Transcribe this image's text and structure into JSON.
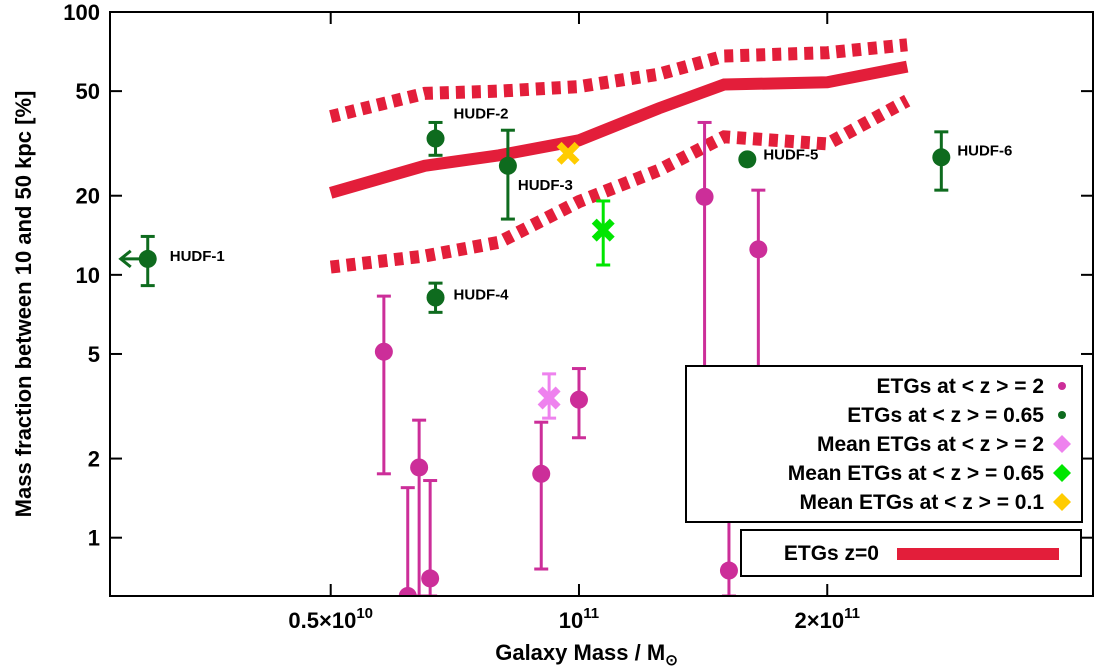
{
  "chart_data": {
    "type": "scatter",
    "xlabel": "Galaxy Mass / M",
    "xlabel_symbol": "⊙",
    "ylabel": "Mass fraction between 10 and 50 kpc [%]",
    "x_scale": "log",
    "y_scale": "log",
    "xlim": [
      27000000000.0,
      420000000000.0
    ],
    "ylim": [
      0.6,
      100
    ],
    "x_ticks": [
      {
        "value": 50000000000.0,
        "base": "0.5×10",
        "exp": "10"
      },
      {
        "value": 100000000000.0,
        "base": "10",
        "exp": "11"
      },
      {
        "value": 200000000000.0,
        "base": "2×10",
        "exp": "11"
      }
    ],
    "y_ticks": [
      {
        "value": 1,
        "label": "1"
      },
      {
        "value": 2,
        "label": "2"
      },
      {
        "value": 5,
        "label": "5"
      },
      {
        "value": 10,
        "label": "10"
      },
      {
        "value": 20,
        "label": "20"
      },
      {
        "value": 50,
        "label": "50"
      },
      {
        "value": 100,
        "label": "100"
      }
    ],
    "series": [
      {
        "name": "ETGs at < z > = 2",
        "marker": "circle",
        "color": "#cc2e99",
        "points": [
          {
            "x": 58000000000.0,
            "y": 5.1,
            "ylo": 1.75,
            "yhi": 8.3
          },
          {
            "x": 62000000000.0,
            "y": 0.6,
            "ylo": 0.6,
            "yhi": 1.55
          },
          {
            "x": 64000000000.0,
            "y": 1.85,
            "ylo": 0.6,
            "yhi": 2.8
          },
          {
            "x": 66000000000.0,
            "y": 0.7,
            "ylo": 0.6,
            "yhi": 1.65
          },
          {
            "x": 90000000000.0,
            "y": 1.75,
            "ylo": 0.76,
            "yhi": 2.75
          },
          {
            "x": 100000000000.0,
            "y": 3.35,
            "ylo": 2.4,
            "yhi": 4.4
          },
          {
            "x": 142000000000.0,
            "y": 19.8,
            "ylo": 1.65,
            "yhi": 38
          },
          {
            "x": 152000000000.0,
            "y": 0.75,
            "ylo": 0.6,
            "yhi": 1.3
          },
          {
            "x": 165000000000.0,
            "y": 12.5,
            "ylo": 3.9,
            "yhi": 21
          }
        ]
      },
      {
        "name": "ETGs at < z > = 0.65",
        "marker": "circle",
        "color": "#0e6b1e",
        "points": [
          {
            "x": 30000000000.0,
            "y": 11.5,
            "ylo": 9.1,
            "yhi": 14.0,
            "label": "HUDF-1",
            "upper_limit_arrow": true
          },
          {
            "x": 67000000000.0,
            "y": 33,
            "ylo": 28.5,
            "yhi": 38,
            "label": "HUDF-2"
          },
          {
            "x": 82000000000.0,
            "y": 26,
            "ylo": 16.3,
            "yhi": 35.5,
            "label": "HUDF-3"
          },
          {
            "x": 67000000000.0,
            "y": 8.2,
            "ylo": 7.2,
            "yhi": 9.3,
            "label": "HUDF-4"
          },
          {
            "x": 160000000000.0,
            "y": 27.5,
            "label": "HUDF-5"
          },
          {
            "x": 275000000000.0,
            "y": 28,
            "ylo": 21,
            "yhi": 35,
            "label": "HUDF-6"
          }
        ]
      },
      {
        "name": "Mean ETGs at < z > = 2",
        "marker": "x",
        "color": "#ee82ee",
        "points": [
          {
            "x": 92000000000.0,
            "y": 3.4,
            "ylo": 2.85,
            "yhi": 4.2
          }
        ]
      },
      {
        "name": "Mean ETGs at < z > = 0.65",
        "marker": "x",
        "color": "#00e600",
        "points": [
          {
            "x": 107000000000.0,
            "y": 14.8,
            "ylo": 10.9,
            "yhi": 19.1
          }
        ]
      },
      {
        "name": "Mean ETGs at < z > = 0.1",
        "marker": "x",
        "color": "#ffcc00",
        "points": [
          {
            "x": 97000000000.0,
            "y": 29
          }
        ]
      },
      {
        "name": "ETGs z=0",
        "type": "band",
        "color": "#e31e3a",
        "median": [
          [
            50000000000.0,
            20.5
          ],
          [
            65000000000.0,
            26
          ],
          [
            80000000000.0,
            28.5
          ],
          [
            100000000000.0,
            32.5
          ],
          [
            125000000000.0,
            43
          ],
          [
            150000000000.0,
            53
          ],
          [
            200000000000.0,
            54
          ],
          [
            250000000000.0,
            62
          ]
        ],
        "upper": [
          [
            50000000000.0,
            40
          ],
          [
            65000000000.0,
            49
          ],
          [
            80000000000.0,
            50
          ],
          [
            100000000000.0,
            52
          ],
          [
            125000000000.0,
            58
          ],
          [
            150000000000.0,
            68
          ],
          [
            200000000000.0,
            70
          ],
          [
            250000000000.0,
            75
          ]
        ],
        "lower": [
          [
            50000000000.0,
            10.7
          ],
          [
            65000000000.0,
            11.8
          ],
          [
            80000000000.0,
            13.3
          ],
          [
            100000000000.0,
            19
          ],
          [
            125000000000.0,
            25
          ],
          [
            150000000000.0,
            33.5
          ],
          [
            200000000000.0,
            31.5
          ],
          [
            250000000000.0,
            46
          ]
        ]
      }
    ],
    "legend": {
      "position": "lower-right",
      "entries": [
        {
          "label": "ETGs at < z > = 2",
          "color": "#cc2e99",
          "marker": "dot"
        },
        {
          "label": "ETGs at < z > = 0.65",
          "color": "#0e6b1e",
          "marker": "dot"
        },
        {
          "label": "Mean ETGs at < z > = 2",
          "color": "#ee82ee",
          "marker": "diamond"
        },
        {
          "label": "Mean ETGs at < z > = 0.65",
          "color": "#00e600",
          "marker": "diamond"
        },
        {
          "label": "Mean ETGs at < z > = 0.1",
          "color": "#ffcc00",
          "marker": "diamond"
        }
      ],
      "line_entry": {
        "label": "ETGs z=0",
        "color": "#e31e3a"
      }
    },
    "grid": false
  }
}
